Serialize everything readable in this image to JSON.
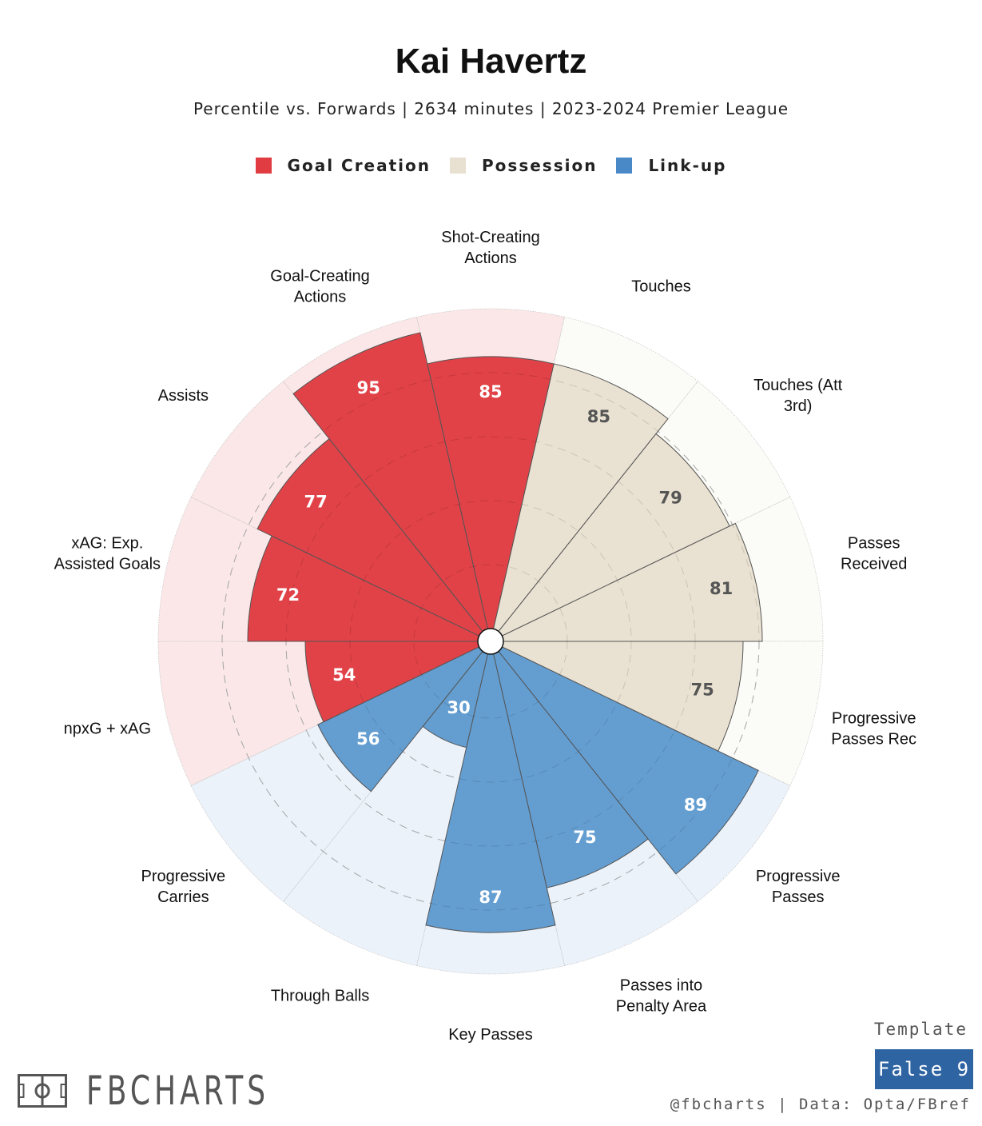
{
  "chart_data": {
    "type": "radar",
    "title": "Kai Havertz",
    "subtitle": "Percentile vs. Forwards | 2634 minutes | 2023-2024 Premier League",
    "rmax": 100,
    "legend": [
      {
        "name": "Goal Creation",
        "color": "#e03c42",
        "bg": "#fbe7e7",
        "text": "#ffffff"
      },
      {
        "name": "Possession",
        "color": "#e8e0d0",
        "bg": "#fbfbf7",
        "text": "#555555"
      },
      {
        "name": "Link-up",
        "color": "#5f9bcf",
        "bg": "#ebf2fa",
        "text": "#ffffff"
      }
    ],
    "categories": [
      {
        "label": [
          "Shot-Creating",
          "Actions"
        ],
        "value": 85,
        "group": 0
      },
      {
        "label": [
          "Touches"
        ],
        "value": 85,
        "group": 1
      },
      {
        "label": [
          "Touches (Att",
          "3rd)"
        ],
        "value": 79,
        "group": 1
      },
      {
        "label": [
          "Passes",
          "Received"
        ],
        "value": 81,
        "group": 1
      },
      {
        "label": [
          "Progressive",
          "Passes Rec"
        ],
        "value": 75,
        "group": 1
      },
      {
        "label": [
          "Progressive",
          "Passes"
        ],
        "value": 89,
        "group": 2
      },
      {
        "label": [
          "Passes into",
          "Penalty Area"
        ],
        "value": 75,
        "group": 2
      },
      {
        "label": [
          "Key Passes"
        ],
        "value": 87,
        "group": 2
      },
      {
        "label": [
          "Through Balls"
        ],
        "value": 30,
        "group": 2
      },
      {
        "label": [
          "Progressive",
          "Carries"
        ],
        "value": 56,
        "group": 2
      },
      {
        "label": [
          "npxG + xAG"
        ],
        "value": 54,
        "group": 0
      },
      {
        "label": [
          "xAG: Exp.",
          "Assisted Goals"
        ],
        "value": 72,
        "group": 0
      },
      {
        "label": [
          "Assists"
        ],
        "value": 77,
        "group": 0
      },
      {
        "label": [
          "Goal-Creating",
          "Actions"
        ],
        "value": 95,
        "group": 0
      }
    ]
  },
  "footer": {
    "logo": "FBCHARTS",
    "template_label": "Template",
    "template_value": "False 9",
    "credit": "@fbcharts | Data: Opta/FBref"
  }
}
